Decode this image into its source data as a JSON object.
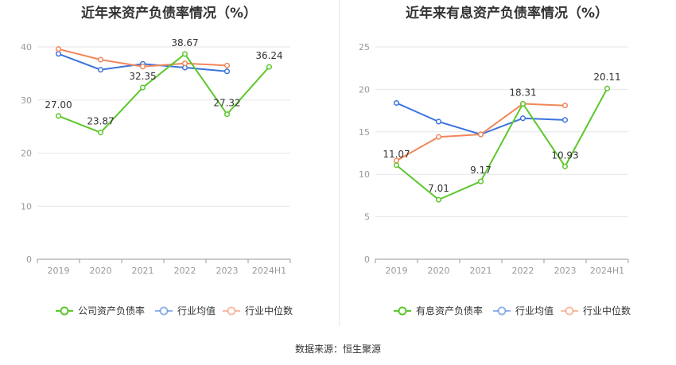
{
  "source_text": "数据来源：恒生聚源",
  "chart_data": [
    {
      "type": "line",
      "title": "近年来资产负债率情况（%）",
      "categories": [
        "2019",
        "2020",
        "2021",
        "2022",
        "2023",
        "2024H1"
      ],
      "ylim": [
        0,
        40
      ],
      "yticks": [
        0,
        10,
        20,
        30,
        40
      ],
      "grid": true,
      "legend_position": "bottom",
      "series": [
        {
          "name": "公司资产负债率",
          "color": "#5cc72c",
          "values": [
            27.0,
            23.87,
            32.35,
            38.67,
            27.32,
            36.24
          ],
          "labels": [
            "27.00",
            "23.87",
            "32.35",
            "38.67",
            "27.32",
            "36.24"
          ]
        },
        {
          "name": "行业均值",
          "color": "#3b73dc",
          "values": [
            38.7,
            35.7,
            36.8,
            36.1,
            35.4,
            null
          ]
        },
        {
          "name": "行业中位数",
          "color": "#f0875a",
          "values": [
            39.6,
            37.6,
            36.3,
            36.9,
            36.5,
            null
          ]
        }
      ]
    },
    {
      "type": "line",
      "title": "近年来有息资产负债率情况（%）",
      "categories": [
        "2019",
        "2020",
        "2021",
        "2022",
        "2023",
        "2024H1"
      ],
      "ylim": [
        0,
        25
      ],
      "yticks": [
        0,
        5,
        10,
        15,
        20,
        25
      ],
      "grid": true,
      "legend_position": "bottom",
      "series": [
        {
          "name": "有息资产负债率",
          "color": "#5cc72c",
          "values": [
            11.07,
            7.01,
            9.17,
            18.31,
            10.93,
            20.11
          ],
          "labels": [
            "11.07",
            "7.01",
            "9.17",
            "18.31",
            "10.93",
            "20.11"
          ]
        },
        {
          "name": "行业均值",
          "color": "#3b73dc",
          "values": [
            18.4,
            16.2,
            14.7,
            16.6,
            16.4,
            null
          ]
        },
        {
          "name": "行业中位数",
          "color": "#f0875a",
          "values": [
            11.6,
            14.4,
            14.7,
            18.3,
            18.1,
            null
          ]
        }
      ]
    }
  ]
}
